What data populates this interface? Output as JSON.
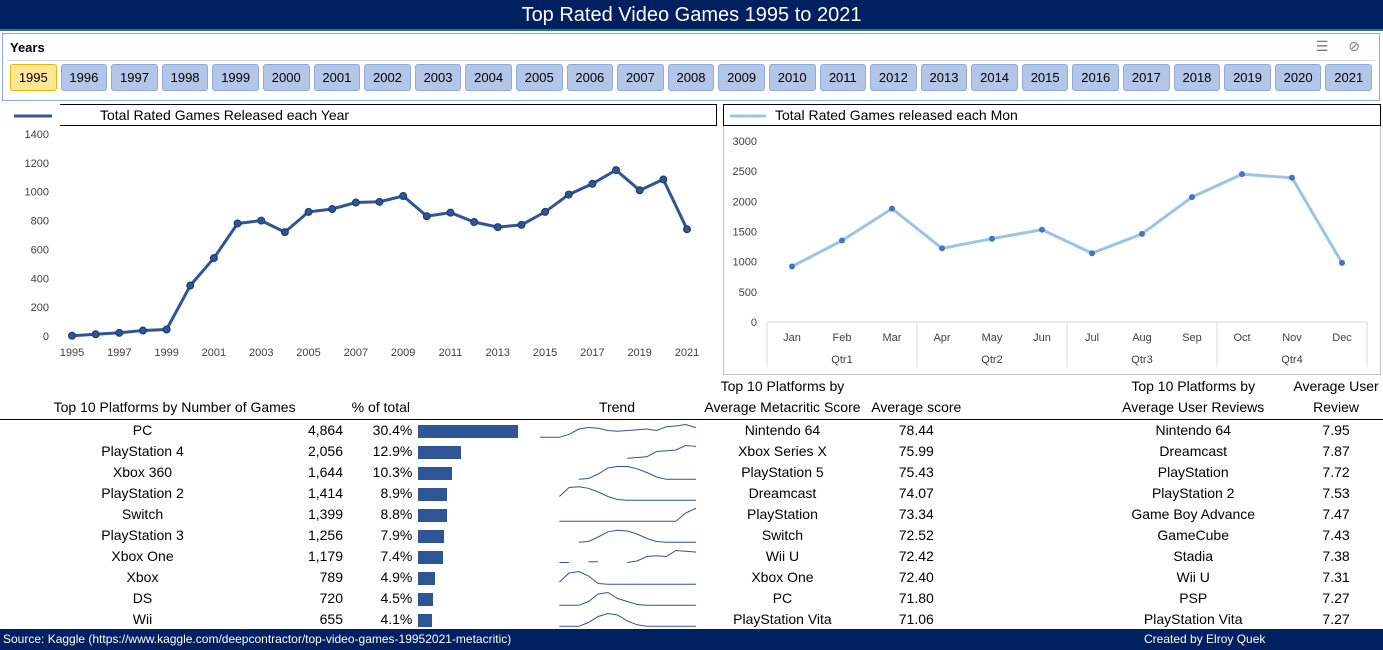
{
  "title": "Top Rated Video Games 1995 to 2021",
  "slicer": {
    "header": "Years",
    "selected": "1995",
    "years": [
      "1995",
      "1996",
      "1997",
      "1998",
      "1999",
      "2000",
      "2001",
      "2002",
      "2003",
      "2004",
      "2005",
      "2006",
      "2007",
      "2008",
      "2009",
      "2010",
      "2011",
      "2012",
      "2013",
      "2014",
      "2015",
      "2016",
      "2017",
      "2018",
      "2019",
      "2020",
      "2021"
    ],
    "tools": [
      {
        "name": "multi-select-icon",
        "glyph": "☰"
      },
      {
        "name": "clear-filter-icon",
        "glyph": "⊘"
      }
    ]
  },
  "colors": {
    "navy": "#002060",
    "line1": "#2f5597",
    "line2": "#9dc3e6",
    "bar": "#2f5597",
    "selected": "#ffe699",
    "year": "#b4c6e7"
  },
  "chart_data": [
    {
      "type": "line",
      "title": "Total Rated Games Released each Year",
      "legend_position": "left-of-title",
      "x": [
        1995,
        1996,
        1997,
        1998,
        1999,
        2000,
        2001,
        2002,
        2003,
        2004,
        2005,
        2006,
        2007,
        2008,
        2009,
        2010,
        2011,
        2012,
        2013,
        2014,
        2015,
        2016,
        2017,
        2018,
        2019,
        2020,
        2021
      ],
      "x_tick_labels": [
        "1995",
        "1997",
        "1999",
        "2001",
        "2003",
        "2005",
        "2007",
        "2009",
        "2011",
        "2013",
        "2015",
        "2017",
        "2019",
        "2021"
      ],
      "values": [
        2,
        12,
        22,
        38,
        45,
        350,
        540,
        780,
        800,
        720,
        860,
        880,
        925,
        930,
        970,
        830,
        855,
        790,
        755,
        770,
        860,
        980,
        1055,
        1150,
        1010,
        1085,
        740
      ],
      "ylim": [
        0,
        1400
      ],
      "y_ticks": [
        0,
        200,
        400,
        600,
        800,
        1000,
        1200,
        1400
      ],
      "grid": false
    },
    {
      "type": "line",
      "title": "Total Rated Games released each Mon",
      "legend_position": "left-of-title",
      "categories": [
        "Jan",
        "Feb",
        "Mar",
        "Apr",
        "May",
        "Jun",
        "Jul",
        "Aug",
        "Sep",
        "Oct",
        "Nov",
        "Dec"
      ],
      "groups": [
        {
          "label": "Qtr1",
          "span": 3
        },
        {
          "label": "Qtr2",
          "span": 3
        },
        {
          "label": "Qtr3",
          "span": 3
        },
        {
          "label": "Qtr4",
          "span": 3
        }
      ],
      "values": [
        920,
        1350,
        1880,
        1220,
        1380,
        1530,
        1140,
        1460,
        2070,
        2450,
        2390,
        980
      ],
      "ylim": [
        0,
        3000
      ],
      "y_ticks": [
        0,
        500,
        1000,
        1500,
        2000,
        2500,
        3000
      ],
      "grid": false
    }
  ],
  "tables": {
    "platforms_games": {
      "col1": "Top 10 Platforms by Number of Games",
      "col_pct": "% of total",
      "col_trend": "Trend",
      "rows": [
        {
          "name": "PC",
          "count": "4,864",
          "pct": "30.4%",
          "value": 4864,
          "trend": [
            0.05,
            0.05,
            0.05,
            0.25,
            0.6,
            0.7,
            0.65,
            0.5,
            0.45,
            0.5,
            0.55,
            0.6,
            0.5,
            0.75,
            0.8,
            0.9,
            0.7,
            0.5
          ]
        },
        {
          "name": "PlayStation 4",
          "count": "2,056",
          "pct": "12.9%",
          "value": 2056,
          "trend": [
            null,
            null,
            null,
            null,
            null,
            null,
            null,
            null,
            null,
            0.05,
            0.1,
            0.15,
            0.5,
            0.55,
            0.6,
            0.9,
            0.85,
            0.4
          ]
        },
        {
          "name": "Xbox 360",
          "count": "1,644",
          "pct": "10.3%",
          "value": 1644,
          "trend": [
            null,
            null,
            null,
            null,
            0.05,
            0.1,
            0.4,
            0.8,
            0.9,
            0.9,
            0.75,
            0.5,
            0.2,
            0.05,
            0.05,
            0.05,
            0.05,
            0.05
          ]
        },
        {
          "name": "PlayStation 2",
          "count": "1,414",
          "pct": "8.9%",
          "value": 1414,
          "trend": [
            null,
            null,
            0.3,
            0.9,
            0.95,
            0.85,
            0.6,
            0.3,
            0.1,
            0.05,
            0.05,
            0.05,
            0.05,
            0.05,
            0.05,
            0.05,
            0.05,
            0.05
          ]
        },
        {
          "name": "Switch",
          "count": "1,399",
          "pct": "8.8%",
          "value": 1399,
          "trend": [
            null,
            null,
            0.05,
            0.05,
            0.05,
            0.05,
            0.05,
            0.05,
            0.05,
            0.05,
            0.05,
            0.05,
            0.05,
            0.05,
            0.05,
            0.6,
            0.9,
            0.6
          ]
        },
        {
          "name": "PlayStation 3",
          "count": "1,256",
          "pct": "7.9%",
          "value": 1256,
          "trend": [
            null,
            null,
            null,
            null,
            0.05,
            0.1,
            0.4,
            0.75,
            0.85,
            0.8,
            0.6,
            0.3,
            0.1,
            0.05,
            0.05,
            0.05,
            0.05,
            0.05
          ]
        },
        {
          "name": "Xbox One",
          "count": "1,179",
          "pct": "7.4%",
          "value": 1179,
          "trend": [
            null,
            null,
            0.1,
            0.1,
            null,
            0.15,
            0.15,
            null,
            null,
            0.1,
            0.2,
            0.5,
            0.55,
            0.5,
            0.9,
            0.85,
            0.8,
            0.4
          ]
        },
        {
          "name": "Xbox",
          "count": "789",
          "pct": "4.9%",
          "value": 789,
          "trend": [
            null,
            null,
            0.2,
            0.8,
            0.9,
            0.6,
            0.1,
            0.05,
            0.05,
            0.05,
            0.05,
            0.05,
            0.05,
            0.05,
            0.05,
            0.05,
            0.05,
            0.05
          ]
        },
        {
          "name": "DS",
          "count": "720",
          "pct": "4.5%",
          "value": 720,
          "trend": [
            null,
            null,
            0.05,
            0.05,
            0.05,
            0.3,
            0.8,
            0.9,
            0.5,
            0.3,
            0.1,
            0.05,
            0.05,
            0.05,
            0.05,
            0.05,
            0.05,
            0.05
          ]
        },
        {
          "name": "Wii",
          "count": "655",
          "pct": "4.1%",
          "value": 655,
          "trend": [
            null,
            null,
            0.05,
            0.05,
            0.05,
            0.3,
            0.7,
            0.9,
            0.8,
            0.4,
            0.15,
            0.05,
            0.05,
            0.05,
            0.05,
            0.05,
            0.05,
            0.05
          ]
        }
      ]
    },
    "platforms_metacritic": {
      "col1_line1": "Top 10 Platforms by",
      "col1_line2": "Average Metacritic Score",
      "col2": "Average score",
      "rows": [
        {
          "name": "Nintendo 64",
          "score": "78.44"
        },
        {
          "name": "Xbox Series X",
          "score": "75.99"
        },
        {
          "name": "PlayStation 5",
          "score": "75.43"
        },
        {
          "name": "Dreamcast",
          "score": "74.07"
        },
        {
          "name": "PlayStation",
          "score": "73.34"
        },
        {
          "name": "Switch",
          "score": "72.52"
        },
        {
          "name": "Wii U",
          "score": "72.42"
        },
        {
          "name": "Xbox One",
          "score": "72.40"
        },
        {
          "name": "PC",
          "score": "71.80"
        },
        {
          "name": "PlayStation Vita",
          "score": "71.06"
        }
      ]
    },
    "platforms_user": {
      "col1_line1": "Top 10 Platforms by",
      "col1_line2": "Average User Reviews",
      "col2_line1": "Average User",
      "col2_line2": "Review",
      "rows": [
        {
          "name": "Nintendo 64",
          "score": "7.95"
        },
        {
          "name": "Dreamcast",
          "score": "7.87"
        },
        {
          "name": "PlayStation",
          "score": "7.72"
        },
        {
          "name": "PlayStation 2",
          "score": "7.53"
        },
        {
          "name": "Game Boy Advance",
          "score": "7.47"
        },
        {
          "name": "GameCube",
          "score": "7.43"
        },
        {
          "name": "Stadia",
          "score": "7.38"
        },
        {
          "name": "Wii U",
          "score": "7.31"
        },
        {
          "name": "PSP",
          "score": "7.27"
        },
        {
          "name": "PlayStation Vita",
          "score": "7.27"
        }
      ]
    }
  },
  "footer": {
    "source": "Source: Kaggle (https://www.kaggle.com/deepcontractor/top-video-games-19952021-metacritic)",
    "credit": "Created by Elroy Quek"
  }
}
